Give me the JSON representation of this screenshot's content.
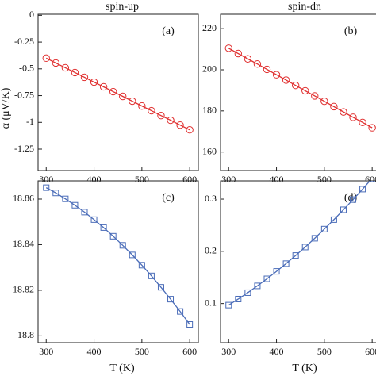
{
  "chart_data": [
    {
      "type": "line",
      "title": "spin-up",
      "label": "(a)",
      "ylabel": "α (μV/K)",
      "x": [
        300,
        320,
        340,
        360,
        380,
        400,
        420,
        440,
        460,
        480,
        500,
        520,
        540,
        560,
        580,
        600
      ],
      "series": [
        {
          "color": "#e03030",
          "marker": "circle",
          "values": [
            -0.4,
            -0.445,
            -0.49,
            -0.534,
            -0.579,
            -0.624,
            -0.668,
            -0.713,
            -0.757,
            -0.802,
            -0.847,
            -0.891,
            -0.936,
            -0.98,
            -1.025,
            -1.07
          ]
        }
      ],
      "xlim": [
        283,
        618
      ],
      "xticks": [
        300,
        400,
        500,
        600
      ],
      "ylim": [
        -1.45,
        0.01
      ],
      "yticks": [
        0,
        -0.25,
        -0.5,
        -0.75,
        -1,
        -1.25
      ]
    },
    {
      "type": "line",
      "title": "spin-dn",
      "label": "(b)",
      "x": [
        300,
        320,
        340,
        360,
        380,
        400,
        420,
        440,
        460,
        480,
        500,
        520,
        540,
        560,
        580,
        600
      ],
      "series": [
        {
          "color": "#e03030",
          "marker": "circle",
          "values": [
            210.5,
            207.9,
            205.3,
            202.8,
            200.2,
            197.6,
            195.0,
            192.4,
            189.8,
            187.3,
            184.7,
            182.1,
            179.5,
            176.9,
            174.4,
            171.8
          ]
        }
      ],
      "xlim": [
        283,
        618
      ],
      "xticks": [
        300,
        400,
        500,
        600
      ],
      "ylim": [
        151,
        227
      ],
      "yticks": [
        160,
        180,
        200,
        220
      ]
    },
    {
      "type": "line",
      "label": "(c)",
      "xlabel": "T (K)",
      "x": [
        300,
        320,
        340,
        360,
        380,
        400,
        420,
        440,
        460,
        480,
        500,
        520,
        540,
        560,
        580,
        600
      ],
      "series": [
        {
          "color": "#4a6cb8",
          "marker": "square",
          "values": [
            18.865,
            18.8627,
            18.8601,
            18.8573,
            18.8543,
            18.851,
            18.8475,
            18.8437,
            18.8397,
            18.8355,
            18.831,
            18.8263,
            18.8213,
            18.8161,
            18.8107,
            18.805
          ]
        }
      ],
      "xlim": [
        283,
        618
      ],
      "xticks": [
        300,
        400,
        500,
        600
      ],
      "ylim": [
        18.797,
        18.868
      ],
      "yticks": [
        18.8,
        18.82,
        18.84,
        18.86
      ]
    },
    {
      "type": "line",
      "label": "(d)",
      "xlabel": "T (K)",
      "x": [
        300,
        320,
        340,
        360,
        380,
        400,
        420,
        440,
        460,
        480,
        500,
        520,
        540,
        560,
        580,
        600
      ],
      "series": [
        {
          "color": "#4a6cb8",
          "marker": "square",
          "values": [
            0.097,
            0.1086,
            0.1208,
            0.1338,
            0.1473,
            0.1616,
            0.1764,
            0.192,
            0.2082,
            0.225,
            0.2426,
            0.2607,
            0.2796,
            0.2991,
            0.3192,
            0.34
          ]
        }
      ],
      "xlim": [
        283,
        618
      ],
      "xticks": [
        300,
        400,
        500,
        600
      ],
      "ylim": [
        0.025,
        0.335
      ],
      "yticks": [
        0.1,
        0.2,
        0.3
      ]
    }
  ]
}
